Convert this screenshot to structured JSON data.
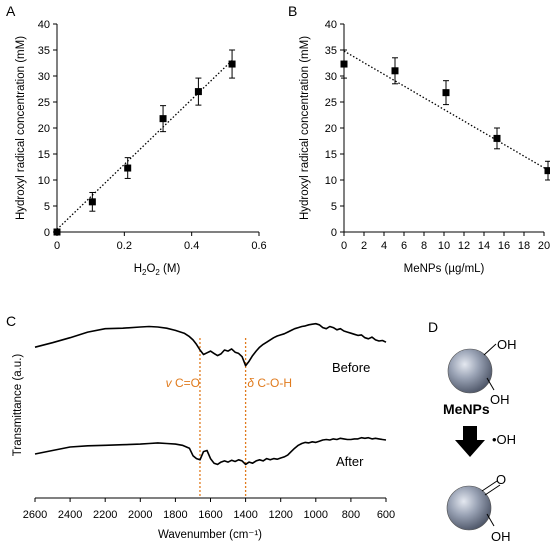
{
  "panels": {
    "A": "A",
    "B": "B",
    "C": "C",
    "D": "D"
  },
  "chart_data": [
    {
      "type": "scatter",
      "panel": "A",
      "xlabel_main": "H",
      "xlabel_sub": "2",
      "xlabel_mid": "O",
      "xlabel_sub2": "2",
      "xlabel_tail": " (M)",
      "ylabel": "Hydroxyl radical concentration (mM)",
      "xlim": [
        0,
        0.6
      ],
      "ylim": [
        0,
        40
      ],
      "xticks": [
        "0",
        "0.2",
        "0.4",
        "0.6"
      ],
      "xtick_values": [
        0,
        0.2,
        0.4,
        0.6
      ],
      "yticks": [
        "0",
        "5",
        "10",
        "15",
        "20",
        "25",
        "30",
        "35",
        "40"
      ],
      "ytick_values": [
        0,
        5,
        10,
        15,
        20,
        25,
        30,
        35,
        40
      ],
      "x": [
        0,
        0.105,
        0.21,
        0.315,
        0.42,
        0.52
      ],
      "y": [
        0,
        5.8,
        12.3,
        21.8,
        27.0,
        32.3
      ],
      "error": [
        0,
        1.8,
        2.0,
        2.5,
        2.6,
        2.7
      ],
      "trendline": {
        "x": [
          0,
          0.52
        ],
        "y": [
          0.5,
          33.0
        ]
      }
    },
    {
      "type": "scatter",
      "panel": "B",
      "xlabel": "MeNPs (µg/mL)",
      "ylabel": "Hydroxyl radical concentration (mM)",
      "xlim": [
        0,
        20
      ],
      "ylim": [
        0,
        40
      ],
      "xticks": [
        "0",
        "2",
        "4",
        "6",
        "8",
        "10",
        "12",
        "14",
        "16",
        "18",
        "20"
      ],
      "xtick_values": [
        0,
        2,
        4,
        6,
        8,
        10,
        12,
        14,
        16,
        18,
        20
      ],
      "yticks": [
        "0",
        "5",
        "10",
        "15",
        "20",
        "25",
        "30",
        "35",
        "40"
      ],
      "ytick_values": [
        0,
        5,
        10,
        15,
        20,
        25,
        30,
        35,
        40
      ],
      "x": [
        0,
        5.1,
        10.2,
        15.3,
        20.4
      ],
      "y": [
        32.3,
        31.0,
        26.8,
        18.0,
        11.8
      ],
      "error": [
        2.7,
        2.5,
        2.3,
        2.0,
        1.8
      ],
      "trendline": {
        "x": [
          0,
          20.4
        ],
        "y": [
          34.8,
          11.9
        ]
      }
    },
    {
      "type": "line",
      "panel": "C",
      "xlabel": "Wavenumber (cm⁻¹)",
      "ylabel": "Transmittance (a.u.)",
      "xlim": [
        2600,
        600
      ],
      "xticks": [
        "2600",
        "2400",
        "2200",
        "2000",
        "1800",
        "1600",
        "1400",
        "1200",
        "1000",
        "800",
        "600"
      ],
      "xtick_values": [
        2600,
        2400,
        2200,
        2000,
        1800,
        1600,
        1400,
        1200,
        1000,
        800,
        600
      ],
      "series": [
        {
          "name": "Before",
          "x": [
            2600,
            2500,
            2400,
            2300,
            2200,
            2100,
            2000,
            1950,
            1900,
            1850,
            1800,
            1750,
            1720,
            1700,
            1680,
            1660,
            1640,
            1620,
            1600,
            1580,
            1560,
            1540,
            1520,
            1500,
            1480,
            1460,
            1440,
            1420,
            1400,
            1380,
            1360,
            1340,
            1320,
            1300,
            1280,
            1260,
            1240,
            1220,
            1200,
            1180,
            1160,
            1140,
            1120,
            1100,
            1080,
            1060,
            1040,
            1020,
            1000,
            980,
            960,
            940,
            920,
            900,
            880,
            860,
            840,
            820,
            800,
            780,
            760,
            740,
            720,
            700,
            680,
            660,
            640,
            620,
            600
          ],
          "y": [
            0.55,
            0.63,
            0.72,
            0.82,
            0.88,
            0.89,
            0.91,
            0.92,
            0.91,
            0.89,
            0.85,
            0.8,
            0.74,
            0.68,
            0.6,
            0.5,
            0.42,
            0.45,
            0.48,
            0.44,
            0.4,
            0.43,
            0.5,
            0.48,
            0.52,
            0.46,
            0.44,
            0.38,
            0.22,
            0.3,
            0.4,
            0.48,
            0.55,
            0.6,
            0.64,
            0.68,
            0.72,
            0.75,
            0.77,
            0.79,
            0.82,
            0.85,
            0.88,
            0.9,
            0.92,
            0.93,
            0.95,
            0.96,
            0.97,
            0.95,
            0.9,
            0.88,
            0.92,
            0.9,
            0.86,
            0.88,
            0.84,
            0.82,
            0.8,
            0.78,
            0.76,
            0.77,
            0.72,
            0.7,
            0.73,
            0.68,
            0.66,
            0.67,
            0.64
          ]
        },
        {
          "name": "After",
          "x": [
            2600,
            2500,
            2400,
            2300,
            2200,
            2100,
            2000,
            1950,
            1900,
            1850,
            1800,
            1760,
            1720,
            1700,
            1680,
            1660,
            1640,
            1620,
            1600,
            1580,
            1560,
            1540,
            1520,
            1500,
            1480,
            1460,
            1440,
            1420,
            1400,
            1380,
            1360,
            1340,
            1320,
            1300,
            1280,
            1260,
            1240,
            1220,
            1200,
            1180,
            1160,
            1140,
            1120,
            1100,
            1080,
            1060,
            1040,
            1020,
            1000,
            980,
            960,
            940,
            920,
            900,
            880,
            860,
            840,
            820,
            800,
            780,
            760,
            740,
            720,
            700,
            680,
            660,
            640,
            620,
            600
          ],
          "y": [
            0.38,
            0.44,
            0.5,
            0.52,
            0.53,
            0.54,
            0.55,
            0.56,
            0.57,
            0.56,
            0.55,
            0.53,
            0.48,
            0.35,
            0.3,
            0.28,
            0.42,
            0.44,
            0.3,
            0.22,
            0.2,
            0.24,
            0.26,
            0.24,
            0.27,
            0.25,
            0.28,
            0.26,
            0.2,
            0.24,
            0.22,
            0.26,
            0.28,
            0.26,
            0.3,
            0.28,
            0.3,
            0.29,
            0.31,
            0.33,
            0.36,
            0.42,
            0.48,
            0.53,
            0.56,
            0.58,
            0.57,
            0.59,
            0.58,
            0.6,
            0.62,
            0.63,
            0.62,
            0.64,
            0.63,
            0.65,
            0.64,
            0.63,
            0.63,
            0.64,
            0.64,
            0.66,
            0.65,
            0.66,
            0.64,
            0.65,
            0.64,
            0.63,
            0.62
          ]
        }
      ],
      "series_labels": [
        "Before",
        "After"
      ],
      "markers": [
        {
          "x": 1660,
          "label_prefix": "v",
          "label": " C=O"
        },
        {
          "x": 1400,
          "label_prefix": "δ",
          "label": " C-O-H"
        }
      ],
      "marker_color": "#e07b1e"
    }
  ],
  "schematic": {
    "oh_top": "OH",
    "oh_bottom": "OH",
    "label": "MeNPs",
    "reagent": "•OH",
    "o_top": "O",
    "oh_product": "OH"
  }
}
